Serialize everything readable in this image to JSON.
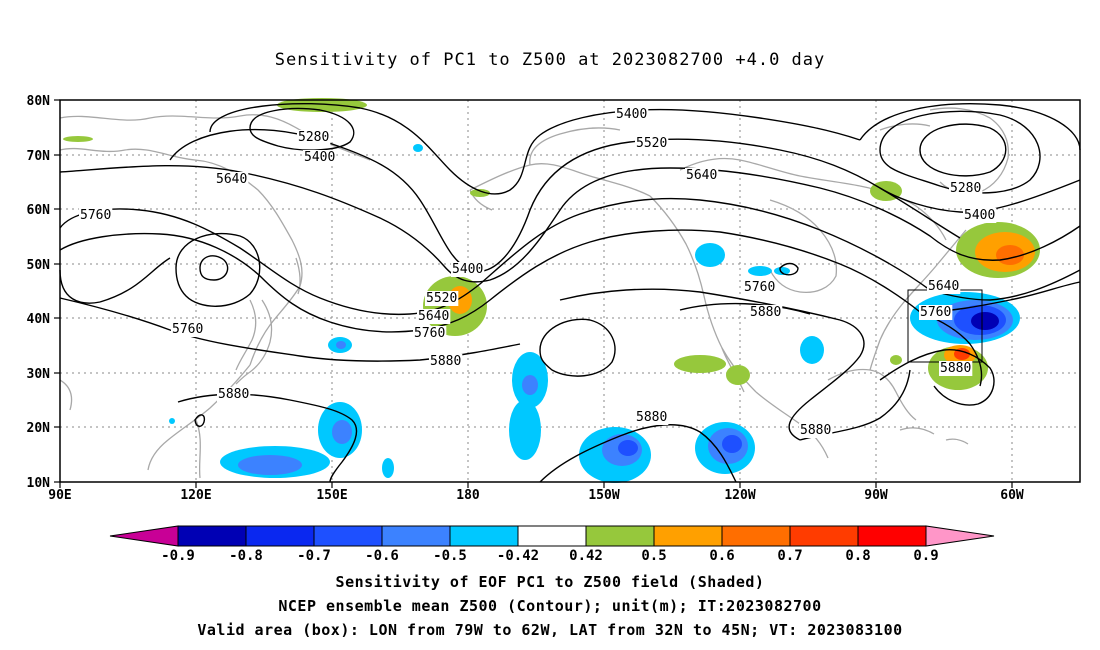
{
  "title": "Sensitivity of PC1 to Z500 at 2023082700 +4.0 day",
  "map": {
    "lat_labels": [
      "80N",
      "70N",
      "60N",
      "50N",
      "40N",
      "30N",
      "20N",
      "10N"
    ],
    "lon_labels": [
      "90E",
      "120E",
      "150E",
      "180",
      "150W",
      "120W",
      "90W",
      "60W"
    ],
    "contour_labels": [
      {
        "text": "5400",
        "name": "contour-label-5400"
      },
      {
        "text": "5280",
        "name": "contour-label-5280"
      },
      {
        "text": "5400",
        "name": "contour-label-5400"
      },
      {
        "text": "5520",
        "name": "contour-label-5520"
      },
      {
        "text": "5640",
        "name": "contour-label-5640"
      },
      {
        "text": "5640",
        "name": "contour-label-5640"
      },
      {
        "text": "5280",
        "name": "contour-label-5280"
      },
      {
        "text": "5400",
        "name": "contour-label-5400"
      },
      {
        "text": "5760",
        "name": "contour-label-5760"
      },
      {
        "text": "5400",
        "name": "contour-label-5400"
      },
      {
        "text": "5520",
        "name": "contour-label-5520"
      },
      {
        "text": "5640",
        "name": "contour-label-5640"
      },
      {
        "text": "5760",
        "name": "contour-label-5760"
      },
      {
        "text": "5760",
        "name": "contour-label-5760"
      },
      {
        "text": "5880",
        "name": "contour-label-5880"
      },
      {
        "text": "5760",
        "name": "contour-label-5760"
      },
      {
        "text": "5880",
        "name": "contour-label-5880"
      },
      {
        "text": "5640",
        "name": "contour-label-5640"
      },
      {
        "text": "5760",
        "name": "contour-label-5760"
      },
      {
        "text": "5880",
        "name": "contour-label-5880"
      },
      {
        "text": "5880",
        "name": "contour-label-5880"
      },
      {
        "text": "5880",
        "name": "contour-label-5880"
      },
      {
        "text": "5880",
        "name": "contour-label-5880"
      }
    ]
  },
  "colorbar": {
    "labels": [
      "-0.9",
      "-0.8",
      "-0.7",
      "-0.6",
      "-0.5",
      "-0.42",
      "0.42",
      "0.5",
      "0.6",
      "0.7",
      "0.8",
      "0.9"
    ],
    "colors": [
      "#0000b4",
      "#0a28f0",
      "#1e50ff",
      "#3c82ff",
      "#00c8ff",
      "#ffffff",
      "#96c83c",
      "#ffa000",
      "#ff6e00",
      "#ff3c00",
      "#ff0000"
    ],
    "low_color": "#c80096",
    "high_color": "#ff96c8"
  },
  "footer": {
    "line1": "Sensitivity of EOF PC1 to Z500 field (Shaded)",
    "line2": "NCEP ensemble mean Z500 (Contour); unit(m); IT:2023082700",
    "line3": "Valid area (box): LON from 79W to 62W, LAT from 32N to 45N; VT: 2023083100"
  }
}
